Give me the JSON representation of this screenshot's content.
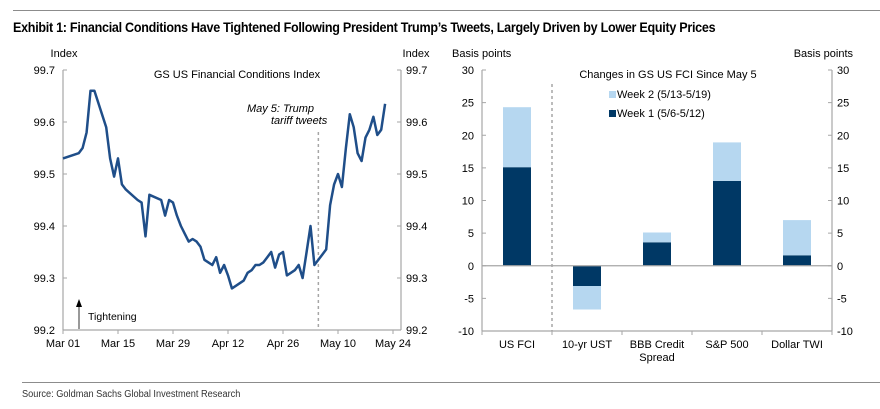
{
  "header": {
    "title": "Exhibit 1: Financial Conditions Have Tightened Following President Trump’s Tweets, Largely Driven by Lower Equity Prices"
  },
  "footer": {
    "source": "Source: Goldman Sachs Global Investment Research"
  },
  "chart_data": [
    {
      "type": "line",
      "title": "GS US Financial Conditions Index",
      "ylabel_left": "Index",
      "ylabel_right": "Index",
      "xlabel": "",
      "ylim": [
        99.2,
        99.7
      ],
      "yticks": [
        "99.2",
        "99.3",
        "99.4",
        "99.5",
        "99.6",
        "99.7"
      ],
      "xtick_labels": [
        "Mar 01",
        "Mar 15",
        "Mar 29",
        "Apr 12",
        "Apr 26",
        "May 10",
        "May 24"
      ],
      "xlim_days": [
        0,
        84
      ],
      "grid": false,
      "line_color": "#1f4e89",
      "annotation": {
        "text_line1": "May 5: Trump",
        "text_line2": "tariff tweets",
        "day": 65
      },
      "arrow_annotation": "Tightening",
      "series": [
        {
          "name": "GS US FCI",
          "x_days": [
            0,
            4,
            5,
            6,
            7,
            8,
            11,
            12,
            13,
            14,
            15,
            16,
            19,
            20,
            21,
            22,
            25,
            26,
            27,
            28,
            29,
            30,
            31,
            32,
            33,
            34,
            35,
            36,
            37,
            38,
            39,
            40,
            41,
            42,
            43,
            44,
            45,
            46,
            47,
            48,
            49,
            50,
            51,
            52,
            53,
            54,
            55,
            56,
            57,
            58,
            59,
            60,
            61,
            62,
            63,
            64,
            65,
            66,
            67,
            68,
            69,
            70,
            71,
            72,
            73,
            74,
            75,
            76,
            77,
            78,
            79,
            80,
            81,
            82
          ],
          "values": [
            99.53,
            99.54,
            99.55,
            99.58,
            99.66,
            99.66,
            99.59,
            99.53,
            99.495,
            99.53,
            99.48,
            99.47,
            99.45,
            99.445,
            99.38,
            99.46,
            99.45,
            99.42,
            99.45,
            99.445,
            99.42,
            99.4,
            99.385,
            99.37,
            99.375,
            99.37,
            99.36,
            99.335,
            99.33,
            99.325,
            99.34,
            99.31,
            99.325,
            99.305,
            99.28,
            99.285,
            99.29,
            99.295,
            99.31,
            99.315,
            99.325,
            99.325,
            99.33,
            99.34,
            99.35,
            99.32,
            99.345,
            99.35,
            99.305,
            99.31,
            99.315,
            99.325,
            99.3,
            99.35,
            99.4,
            99.325,
            99.335,
            99.345,
            99.355,
            99.44,
            99.48,
            99.5,
            99.475,
            99.55,
            99.615,
            99.59,
            99.54,
            99.525,
            99.57,
            99.585,
            99.61,
            99.575,
            99.585,
            99.635
          ]
        }
      ]
    },
    {
      "type": "bar",
      "stacked": true,
      "title": "Changes in GS US FCI Since May 5",
      "ylabel_left": "Basis points",
      "ylabel_right": "Basis points",
      "xlabel": "",
      "ylim": [
        -10,
        30
      ],
      "yticks": [
        "-10",
        "-5",
        "0",
        "5",
        "10",
        "15",
        "20",
        "25",
        "30"
      ],
      "categories": [
        "US FCI",
        "10-yr UST",
        "BBB Credit Spread",
        "S&P 500",
        "Dollar TWI"
      ],
      "category_lines": [
        [
          "US FCI"
        ],
        [
          "10-yr UST"
        ],
        [
          "BBB Credit",
          "Spread"
        ],
        [
          "S&P 500"
        ],
        [
          "Dollar TWI"
        ]
      ],
      "legend_position": "top-center",
      "grid": false,
      "series": [
        {
          "name": "Week 1 (5/6-5/12)",
          "color": "#003865",
          "values": [
            15.1,
            -3.1,
            3.6,
            13.0,
            1.6
          ]
        },
        {
          "name": "Week 2 (5/13-5/19)",
          "color": "#b6d7f0",
          "values": [
            9.2,
            -3.6,
            1.5,
            5.9,
            5.4
          ]
        }
      ],
      "legend": [
        "Week 2 (5/13-5/19)",
        "Week 1 (5/6-5/12)"
      ]
    }
  ]
}
